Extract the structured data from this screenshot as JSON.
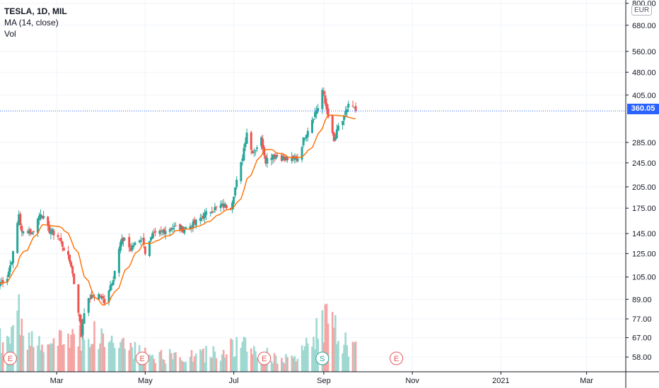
{
  "legend": {
    "symbol_line": "TESLA, 1D, MIL",
    "ma_line": "MA (14, close)",
    "vol_line": "Vol"
  },
  "currency_badge": "EUR",
  "last_price_label": "360.05",
  "colors": {
    "up": "#26a69a",
    "down": "#ef5350",
    "ma": "#ff6d00",
    "price_line": "#2962ff",
    "volume_up": "#9ed8d1",
    "volume_down": "#f5a5a3",
    "event_marker": "#e8575a"
  },
  "event_markers": [
    {
      "label": "E",
      "date": "2020-01-29"
    },
    {
      "label": "E",
      "date": "2020-04-29"
    },
    {
      "label": "E",
      "date": "2020-07-22"
    },
    {
      "label": "S",
      "date": "2020-08-31"
    },
    {
      "label": "E",
      "date": "2020-10-21"
    }
  ],
  "chart_data": {
    "type": "candlestick",
    "x_tick_labels": [
      "Mar",
      "May",
      "Jul",
      "Sep",
      "Nov",
      "2021",
      "Mar"
    ],
    "x_tick_dates": [
      "2020-03-01",
      "2020-05-01",
      "2020-07-01",
      "2020-09-01",
      "2020-11-01",
      "2021-01-01",
      "2021-03-01"
    ],
    "y_scale": "log",
    "y_tick_labels": [
      "800.00",
      "680.00",
      "560.00",
      "480.00",
      "405.00",
      "285.00",
      "245.00",
      "205.00",
      "175.00",
      "145.00",
      "125.00",
      "105.00",
      "89.00",
      "77.00",
      "67.00",
      "58.00"
    ],
    "y_tick_values": [
      800,
      680,
      560,
      480,
      405,
      285,
      245,
      205,
      175,
      145,
      125,
      105,
      89,
      77,
      67,
      58
    ],
    "x_range": [
      "2020-01-22",
      "2021-03-28"
    ],
    "y_range": [
      52,
      820
    ],
    "last_price": 360.05,
    "price_anchors": [
      [
        "2020-01-22",
        100
      ],
      [
        "2020-01-27",
        105
      ],
      [
        "2020-01-31",
        125
      ],
      [
        "2020-02-04",
        168
      ],
      [
        "2020-02-06",
        145
      ],
      [
        "2020-02-10",
        150
      ],
      [
        "2020-02-13",
        145
      ],
      [
        "2020-02-19",
        170
      ],
      [
        "2020-02-24",
        150
      ],
      [
        "2020-03-02",
        142
      ],
      [
        "2020-03-06",
        130
      ],
      [
        "2020-03-11",
        115
      ],
      [
        "2020-03-16",
        82
      ],
      [
        "2020-03-18",
        68
      ],
      [
        "2020-03-20",
        82
      ],
      [
        "2020-03-24",
        90
      ],
      [
        "2020-03-30",
        92
      ],
      [
        "2020-04-03",
        88
      ],
      [
        "2020-04-09",
        105
      ],
      [
        "2020-04-14",
        135
      ],
      [
        "2020-04-17",
        140
      ],
      [
        "2020-04-21",
        128
      ],
      [
        "2020-04-24",
        136
      ],
      [
        "2020-04-28",
        140
      ],
      [
        "2020-04-30",
        136
      ],
      [
        "2020-05-01",
        126
      ],
      [
        "2020-05-06",
        142
      ],
      [
        "2020-05-13",
        148
      ],
      [
        "2020-05-20",
        152
      ],
      [
        "2020-05-27",
        150
      ],
      [
        "2020-06-03",
        155
      ],
      [
        "2020-06-10",
        165
      ],
      [
        "2020-06-15",
        172
      ],
      [
        "2020-06-22",
        178
      ],
      [
        "2020-06-29",
        178
      ],
      [
        "2020-07-01",
        195
      ],
      [
        "2020-07-06",
        242
      ],
      [
        "2020-07-10",
        310
      ],
      [
        "2020-07-13",
        270
      ],
      [
        "2020-07-15",
        268
      ],
      [
        "2020-07-20",
        292
      ],
      [
        "2020-07-23",
        250
      ],
      [
        "2020-07-28",
        262
      ],
      [
        "2020-08-03",
        255
      ],
      [
        "2020-08-10",
        250
      ],
      [
        "2020-08-14",
        255
      ],
      [
        "2020-08-19",
        300
      ],
      [
        "2020-08-24",
        340
      ],
      [
        "2020-08-28",
        370
      ],
      [
        "2020-08-31",
        420
      ],
      [
        "2020-09-02",
        380
      ],
      [
        "2020-09-04",
        350
      ],
      [
        "2020-09-08",
        285
      ],
      [
        "2020-09-11",
        320
      ],
      [
        "2020-09-15",
        340
      ],
      [
        "2020-09-18",
        380
      ],
      [
        "2020-09-21",
        370
      ],
      [
        "2020-09-23",
        360
      ]
    ],
    "volume_anchors": [
      [
        "2020-01-22",
        40
      ],
      [
        "2020-02-04",
        75
      ],
      [
        "2020-02-20",
        30
      ],
      [
        "2020-03-16",
        55
      ],
      [
        "2020-04-14",
        38
      ],
      [
        "2020-05-01",
        22
      ],
      [
        "2020-06-01",
        20
      ],
      [
        "2020-07-06",
        35
      ],
      [
        "2020-07-20",
        25
      ],
      [
        "2020-08-10",
        15
      ],
      [
        "2020-08-31",
        75
      ],
      [
        "2020-09-08",
        55
      ],
      [
        "2020-09-23",
        30
      ]
    ],
    "ma_period": 14
  }
}
